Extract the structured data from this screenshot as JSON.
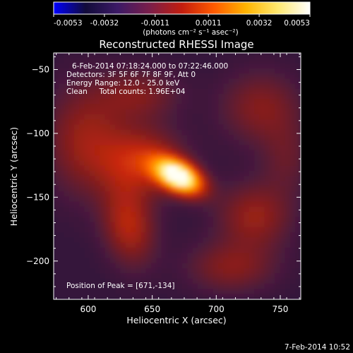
{
  "colorbar": {
    "ticks": [
      "-0.0053",
      "-0.0032",
      "-0.0011",
      "0.0011",
      "0.0032",
      "0.0053"
    ],
    "min": -0.0053,
    "max": 0.0053,
    "unit_label": "(photons cm⁻² s⁻¹ asec⁻²)",
    "stops": [
      "#0000ff",
      "#120b3a",
      "#3c1a66",
      "#7a1e4a",
      "#c21d0e",
      "#ff5a00",
      "#ffb400",
      "#ffe870",
      "#ffffff"
    ]
  },
  "chart_data": {
    "type": "heatmap",
    "title": "Reconstructed RHESSI Image",
    "xlabel": "Heliocentric X (arcsec)",
    "ylabel": "Heliocentric Y (arcsec)",
    "xlim": [
      573,
      766
    ],
    "ylim": [
      -230,
      -37
    ],
    "x_ticks": [
      600,
      650,
      700,
      750
    ],
    "y_ticks": [
      -50,
      -100,
      -150,
      -200
    ],
    "peak": {
      "x": 671,
      "y": -134
    },
    "sources": [
      {
        "x": 671,
        "y": -134,
        "amp": 1.0,
        "sx": 14,
        "sy": 8,
        "rot": -28
      },
      {
        "x": 642,
        "y": -122,
        "amp": 0.32,
        "sx": 22,
        "sy": 18,
        "rot": 0
      },
      {
        "x": 632,
        "y": -172,
        "amp": 0.3,
        "sx": 14,
        "sy": 22,
        "rot": 10
      },
      {
        "x": 598,
        "y": -105,
        "amp": 0.24,
        "sx": 22,
        "sy": 30,
        "rot": 0
      },
      {
        "x": 730,
        "y": -165,
        "amp": 0.24,
        "sx": 20,
        "sy": 18,
        "rot": 0
      },
      {
        "x": 712,
        "y": -205,
        "amp": 0.2,
        "sx": 24,
        "sy": 14,
        "rot": 0
      },
      {
        "x": 735,
        "y": -80,
        "amp": 0.2,
        "sx": 22,
        "sy": 20,
        "rot": 0
      },
      {
        "x": 640,
        "y": -70,
        "amp": 0.18,
        "sx": 22,
        "sy": 14,
        "rot": 0
      },
      {
        "x": 755,
        "y": -120,
        "amp": 0.12,
        "sx": 14,
        "sy": 20,
        "rot": 0
      }
    ],
    "annotations": [
      "6-Feb-2014 07:18:24.000 to 07:22:46.000",
      "Detectors: 3F 5F 6F 7F 8F 9F, Att 0",
      "Energy Range: 12.0 - 25.0 keV",
      "Clean     Total counts: 1.96E+04"
    ],
    "peak_label": "Position of Peak = [671,-134]"
  },
  "footer": {
    "timestamp": "7-Feb-2014 10:52"
  }
}
